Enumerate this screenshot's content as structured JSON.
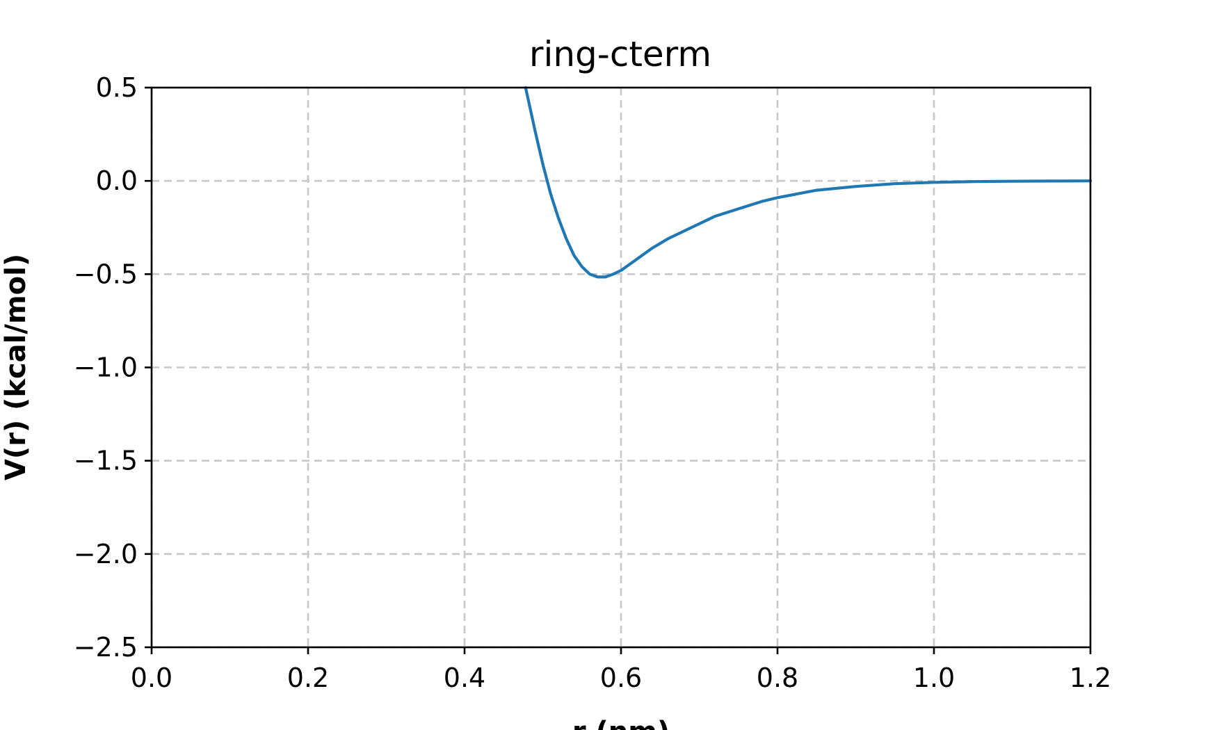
{
  "chart_data": {
    "type": "line",
    "title": "ring-cterm",
    "xlabel": "r (nm)",
    "ylabel": "V(r) (kcal/mol)",
    "xlim": [
      0.0,
      1.2
    ],
    "ylim": [
      -2.5,
      0.5
    ],
    "xticks": [
      "0.0",
      "0.2",
      "0.4",
      "0.6",
      "0.8",
      "1.0",
      "1.2"
    ],
    "yticks": [
      "0.5",
      "0.0",
      "−0.5",
      "−1.0",
      "−1.5",
      "−2.0",
      "−2.5"
    ],
    "xtick_values": [
      0.0,
      0.2,
      0.4,
      0.6,
      0.8,
      1.0,
      1.2
    ],
    "ytick_values": [
      0.5,
      0.0,
      -0.5,
      -1.0,
      -1.5,
      -2.0,
      -2.5
    ],
    "grid": true,
    "grid_style": "dashed",
    "series": [
      {
        "color": "#1f77b4",
        "x": [
          0.478,
          0.49,
          0.5,
          0.51,
          0.52,
          0.53,
          0.54,
          0.55,
          0.56,
          0.57,
          0.58,
          0.59,
          0.6,
          0.61,
          0.62,
          0.63,
          0.64,
          0.66,
          0.68,
          0.7,
          0.72,
          0.75,
          0.78,
          0.8,
          0.85,
          0.9,
          0.95,
          1.0,
          1.05,
          1.1,
          1.15,
          1.2
        ],
        "y": [
          0.5,
          0.27,
          0.09,
          -0.07,
          -0.2,
          -0.31,
          -0.4,
          -0.46,
          -0.5,
          -0.515,
          -0.515,
          -0.5,
          -0.48,
          -0.45,
          -0.42,
          -0.39,
          -0.36,
          -0.31,
          -0.27,
          -0.23,
          -0.19,
          -0.15,
          -0.11,
          -0.09,
          -0.05,
          -0.03,
          -0.015,
          -0.008,
          -0.004,
          -0.002,
          -0.001,
          0.0
        ]
      }
    ]
  }
}
